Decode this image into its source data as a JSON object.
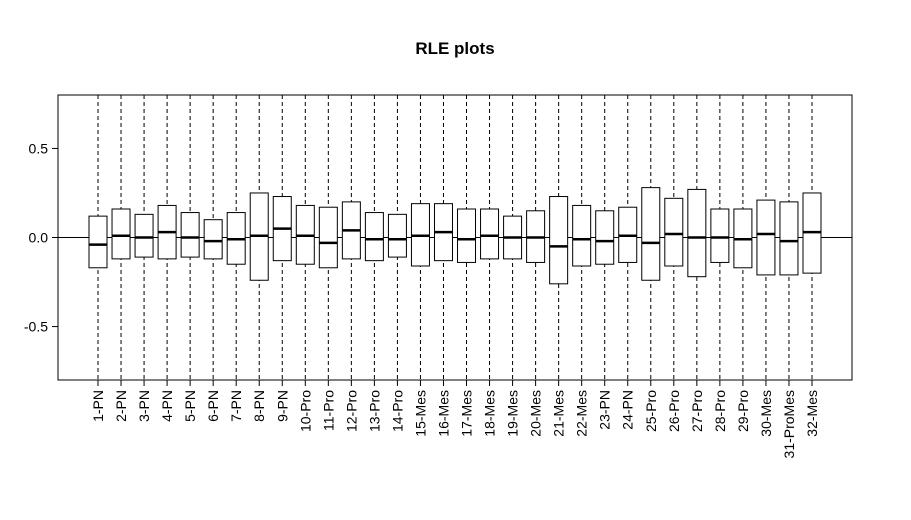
{
  "chart_data": {
    "type": "box",
    "title": "RLE plots",
    "xlabel": "",
    "ylabel": "",
    "ylim": [
      -0.8,
      0.8
    ],
    "yticks": [
      -0.5,
      0.0,
      0.5
    ],
    "ytick_labels": [
      "-0.5",
      "0.0",
      "0.5"
    ],
    "reference_line": 0,
    "categories": [
      "1-PN",
      "2-PN",
      "3-PN",
      "4-PN",
      "5-PN",
      "6-PN",
      "7-PN",
      "8-PN",
      "9-PN",
      "10-Pro",
      "11-Pro",
      "12-Pro",
      "13-Pro",
      "14-Pro",
      "15-Mes",
      "16-Mes",
      "17-Mes",
      "18-Mes",
      "19-Mes",
      "20-Mes",
      "21-Mes",
      "22-Mes",
      "23-PN",
      "24-PN",
      "25-Pro",
      "26-Pro",
      "27-Pro",
      "28-Pro",
      "29-Pro",
      "30-Mes",
      "31-ProMes",
      "32-Mes"
    ],
    "boxes": [
      {
        "q1": -0.17,
        "median": -0.04,
        "q3": 0.12
      },
      {
        "q1": -0.12,
        "median": 0.01,
        "q3": 0.16
      },
      {
        "q1": -0.11,
        "median": 0.0,
        "q3": 0.13
      },
      {
        "q1": -0.12,
        "median": 0.03,
        "q3": 0.18
      },
      {
        "q1": -0.11,
        "median": 0.0,
        "q3": 0.14
      },
      {
        "q1": -0.12,
        "median": -0.02,
        "q3": 0.1
      },
      {
        "q1": -0.15,
        "median": -0.01,
        "q3": 0.14
      },
      {
        "q1": -0.24,
        "median": 0.01,
        "q3": 0.25
      },
      {
        "q1": -0.13,
        "median": 0.05,
        "q3": 0.23
      },
      {
        "q1": -0.15,
        "median": 0.01,
        "q3": 0.18
      },
      {
        "q1": -0.17,
        "median": -0.03,
        "q3": 0.17
      },
      {
        "q1": -0.12,
        "median": 0.04,
        "q3": 0.2
      },
      {
        "q1": -0.13,
        "median": -0.01,
        "q3": 0.14
      },
      {
        "q1": -0.11,
        "median": -0.01,
        "q3": 0.13
      },
      {
        "q1": -0.16,
        "median": 0.01,
        "q3": 0.19
      },
      {
        "q1": -0.13,
        "median": 0.03,
        "q3": 0.19
      },
      {
        "q1": -0.14,
        "median": -0.01,
        "q3": 0.16
      },
      {
        "q1": -0.12,
        "median": 0.01,
        "q3": 0.16
      },
      {
        "q1": -0.12,
        "median": 0.0,
        "q3": 0.12
      },
      {
        "q1": -0.14,
        "median": 0.0,
        "q3": 0.15
      },
      {
        "q1": -0.26,
        "median": -0.05,
        "q3": 0.23
      },
      {
        "q1": -0.16,
        "median": -0.01,
        "q3": 0.18
      },
      {
        "q1": -0.15,
        "median": -0.02,
        "q3": 0.15
      },
      {
        "q1": -0.14,
        "median": 0.01,
        "q3": 0.17
      },
      {
        "q1": -0.24,
        "median": -0.03,
        "q3": 0.28
      },
      {
        "q1": -0.16,
        "median": 0.02,
        "q3": 0.22
      },
      {
        "q1": -0.22,
        "median": 0.0,
        "q3": 0.27
      },
      {
        "q1": -0.14,
        "median": 0.0,
        "q3": 0.16
      },
      {
        "q1": -0.17,
        "median": -0.01,
        "q3": 0.16
      },
      {
        "q1": -0.21,
        "median": 0.02,
        "q3": 0.21
      },
      {
        "q1": -0.21,
        "median": -0.02,
        "q3": 0.2
      },
      {
        "q1": -0.2,
        "median": 0.03,
        "q3": 0.25
      }
    ],
    "grid": false,
    "colors": {
      "box_fill": "#ffffff",
      "box_stroke": "#000000",
      "median": "#000000",
      "whisker": "#000000"
    }
  }
}
